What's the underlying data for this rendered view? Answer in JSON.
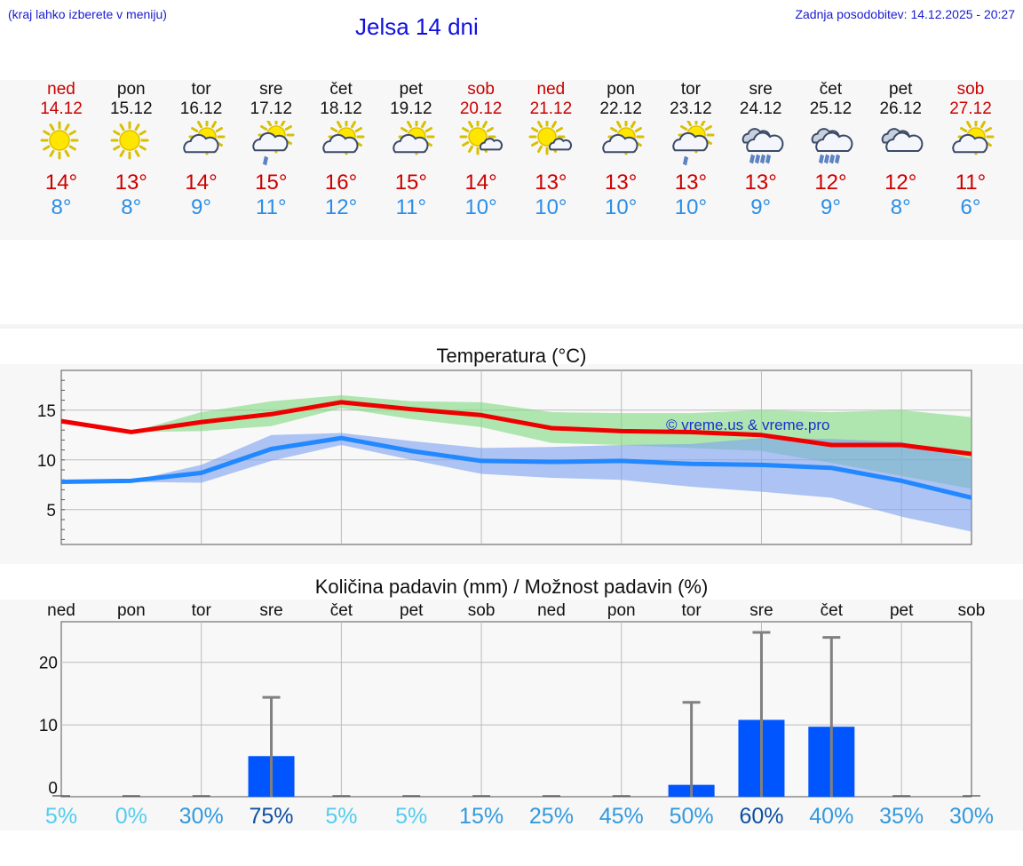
{
  "header": {
    "hint": "(kraj lahko izberete v meniju)",
    "title": "Jelsa 14 dni",
    "updated": "Zadnja posodobitev: 14.12.2025 - 20:27"
  },
  "days": [
    {
      "name": "ned",
      "date": "14.12",
      "icon": "sun-icon",
      "hi": "14°",
      "lo": "8°",
      "weekend": true
    },
    {
      "name": "pon",
      "date": "15.12",
      "icon": "sun-icon",
      "hi": "13°",
      "lo": "8°",
      "weekend": false
    },
    {
      "name": "tor",
      "date": "16.12",
      "icon": "sun-cloud-icon",
      "hi": "14°",
      "lo": "9°",
      "weekend": false
    },
    {
      "name": "sre",
      "date": "17.12",
      "icon": "sun-cloud-rain-icon",
      "hi": "15°",
      "lo": "11°",
      "weekend": false
    },
    {
      "name": "čet",
      "date": "18.12",
      "icon": "sun-cloud-icon",
      "hi": "16°",
      "lo": "12°",
      "weekend": false
    },
    {
      "name": "pet",
      "date": "19.12",
      "icon": "sun-cloud-icon",
      "hi": "15°",
      "lo": "11°",
      "weekend": false
    },
    {
      "name": "sob",
      "date": "20.12",
      "icon": "sun-small-cloud-icon",
      "hi": "14°",
      "lo": "10°",
      "weekend": true
    },
    {
      "name": "ned",
      "date": "21.12",
      "icon": "sun-small-cloud-icon",
      "hi": "13°",
      "lo": "10°",
      "weekend": true
    },
    {
      "name": "pon",
      "date": "22.12",
      "icon": "sun-cloud-icon",
      "hi": "13°",
      "lo": "10°",
      "weekend": false
    },
    {
      "name": "tor",
      "date": "23.12",
      "icon": "sun-cloud-rain-icon",
      "hi": "13°",
      "lo": "10°",
      "weekend": false
    },
    {
      "name": "sre",
      "date": "24.12",
      "icon": "cloud-rain-icon",
      "hi": "13°",
      "lo": "9°",
      "weekend": false
    },
    {
      "name": "čet",
      "date": "25.12",
      "icon": "cloud-rain-icon",
      "hi": "12°",
      "lo": "9°",
      "weekend": false
    },
    {
      "name": "pet",
      "date": "26.12",
      "icon": "cloudy-icon",
      "hi": "12°",
      "lo": "8°",
      "weekend": false
    },
    {
      "name": "sob",
      "date": "27.12",
      "icon": "sun-cloud-icon",
      "hi": "11°",
      "lo": "6°",
      "weekend": true
    }
  ],
  "colors": {
    "hi": "#cc0000",
    "lo": "#2a8ee8",
    "maxLine": "#ee0000",
    "minLine": "#2288ff",
    "maxBand": "#7fd97f",
    "minBand": "#7aa0f0",
    "bar": "#0055ff",
    "err": "#808080"
  },
  "chart_data": [
    {
      "type": "line",
      "title": "Temperatura (°C)",
      "watermark": "© vreme.us & vreme.pro",
      "x": [
        0,
        1,
        2,
        3,
        4,
        5,
        6,
        7,
        8,
        9,
        10,
        11,
        12,
        13
      ],
      "ylim": [
        1.5,
        19
      ],
      "yticks": [
        5,
        10,
        15
      ],
      "series": [
        {
          "name": "max",
          "values": [
            13.9,
            12.8,
            13.8,
            14.6,
            15.8,
            15.1,
            14.5,
            13.2,
            12.9,
            12.8,
            12.5,
            11.5,
            11.5,
            10.6
          ],
          "band_low": [
            13.9,
            12.8,
            12.9,
            13.4,
            15.2,
            14.1,
            13.3,
            11.7,
            11.5,
            11.2,
            10.9,
            9.7,
            8.4,
            7.1
          ],
          "band_high": [
            13.9,
            12.8,
            14.8,
            15.9,
            16.5,
            15.9,
            15.8,
            14.8,
            14.7,
            14.7,
            15.0,
            14.8,
            15.0,
            14.3
          ]
        },
        {
          "name": "min",
          "values": [
            7.8,
            7.9,
            8.7,
            11.1,
            12.2,
            10.9,
            9.9,
            9.8,
            9.9,
            9.6,
            9.5,
            9.2,
            7.9,
            6.2
          ],
          "band_low": [
            7.8,
            7.8,
            7.7,
            9.9,
            11.5,
            10.0,
            8.6,
            8.2,
            8.0,
            7.3,
            6.8,
            6.2,
            4.3,
            2.8
          ],
          "band_high": [
            7.8,
            7.9,
            9.5,
            12.5,
            12.7,
            11.9,
            11.2,
            11.3,
            11.5,
            11.6,
            12.2,
            12.1,
            11.8,
            10.1
          ]
        }
      ]
    },
    {
      "type": "bar",
      "title": "Količina padavin (mm) / Možnost padavin (%)",
      "categories": [
        "ned",
        "pon",
        "tor",
        "sre",
        "čet",
        "pet",
        "sob",
        "ned",
        "pon",
        "tor",
        "sre",
        "čet",
        "pet",
        "sob"
      ],
      "values": [
        0,
        0,
        0,
        5,
        0,
        0,
        0,
        0,
        0,
        0.4,
        10.8,
        9.7,
        0,
        0
      ],
      "err_high": [
        0,
        0,
        0,
        14.4,
        0,
        0,
        0,
        0,
        0,
        13.6,
        24.8,
        24.0,
        0,
        0
      ],
      "probability": [
        "5%",
        "0%",
        "30%",
        "75%",
        "5%",
        "5%",
        "15%",
        "25%",
        "45%",
        "50%",
        "60%",
        "40%",
        "35%",
        "30%"
      ],
      "probability_colors": [
        "#55ccee",
        "#55ccee",
        "#3399dd",
        "#0e4fa0",
        "#55ccee",
        "#55ccee",
        "#3399dd",
        "#3399dd",
        "#3399dd",
        "#3399dd",
        "#0e4fa0",
        "#3399dd",
        "#3399dd",
        "#3399dd"
      ],
      "ylim": [
        -1.5,
        26.5
      ],
      "yticks": [
        0,
        10,
        20
      ]
    }
  ]
}
